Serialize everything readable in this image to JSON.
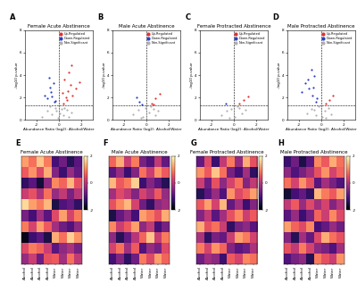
{
  "chart_data": [
    {
      "type": "scatter",
      "label": "A",
      "title": "Female Acute Abstinence",
      "x_label": "Abundance Ratio (log2): Alcohol/Water",
      "y_label": "-log10 p-value",
      "xlim": [
        -3,
        3
      ],
      "xticks": [
        -2,
        0,
        2
      ],
      "ylim": [
        0,
        8
      ],
      "yticks": [
        0,
        2,
        4,
        6,
        8
      ],
      "hline": 1.3,
      "vline": 0,
      "legend": "upper right",
      "marker": "o",
      "grid": false,
      "series": [
        {
          "name": "Up-Regulated",
          "color": "#e0312f",
          "x": [
            0.4,
            0.6,
            0.8,
            1.0,
            1.2,
            0.5,
            0.9,
            1.5,
            0.7,
            1.1,
            1.8,
            0.3
          ],
          "y": [
            1.5,
            2.0,
            2.6,
            3.1,
            2.2,
            3.6,
            4.2,
            2.8,
            1.8,
            4.9,
            3.4,
            2.4
          ]
        },
        {
          "name": "Down-Regulated",
          "color": "#2a3fbf",
          "x": [
            -0.4,
            -0.6,
            -0.8,
            -1.0,
            -0.5,
            -0.7,
            -1.3,
            -0.3,
            -0.9
          ],
          "y": [
            1.6,
            2.1,
            2.9,
            1.9,
            3.3,
            2.5,
            2.2,
            1.7,
            3.8
          ]
        },
        {
          "name": "Non-Significant",
          "color": "#b0b0b0",
          "x": [
            -1.5,
            -1.0,
            -0.6,
            -0.3,
            -0.1,
            0.1,
            0.2,
            0.4,
            0.7,
            1.1,
            -0.8,
            0.9,
            -0.2,
            0.5
          ],
          "y": [
            0.3,
            0.8,
            0.5,
            1.1,
            0.2,
            0.6,
            1.0,
            0.4,
            0.9,
            0.7,
            1.2,
            0.3,
            0.8,
            1.1
          ]
        }
      ]
    },
    {
      "type": "scatter",
      "label": "B",
      "title": "Male Acute Abstinence",
      "x_label": "Abundance Ratio (log2): Alcohol/Water",
      "y_label": "-log10 p-value",
      "xlim": [
        -3,
        3
      ],
      "xticks": [
        -2,
        0,
        2
      ],
      "ylim": [
        0,
        8
      ],
      "yticks": [
        0,
        2,
        4,
        6,
        8
      ],
      "hline": 1.3,
      "vline": 0,
      "legend": "upper right",
      "marker": "o",
      "grid": false,
      "series": [
        {
          "name": "Up-Regulated",
          "color": "#e0312f",
          "x": [
            0.5,
            0.8,
            1.2,
            0.6
          ],
          "y": [
            1.5,
            1.9,
            2.3,
            1.4
          ]
        },
        {
          "name": "Down-Regulated",
          "color": "#2a3fbf",
          "x": [
            -0.6,
            -0.9,
            -0.4
          ],
          "y": [
            1.6,
            2.0,
            1.4
          ]
        },
        {
          "name": "Non-Significant",
          "color": "#b0b0b0",
          "x": [
            -1.2,
            -0.7,
            -0.3,
            -0.1,
            0.2,
            0.4,
            0.8,
            1.0,
            -0.5,
            0.6
          ],
          "y": [
            0.5,
            0.9,
            0.3,
            1.1,
            0.7,
            1.2,
            0.4,
            0.8,
            0.2,
            1.0
          ]
        }
      ]
    },
    {
      "type": "scatter",
      "label": "C",
      "title": "Female Protracted Abstinence",
      "x_label": "Abundance Ratio (log2): Alcohol/Water",
      "y_label": "-log10 p-value",
      "xlim": [
        -3,
        3
      ],
      "xticks": [
        -2,
        0,
        2
      ],
      "ylim": [
        0,
        8
      ],
      "yticks": [
        0,
        2,
        4,
        6,
        8
      ],
      "hline": 1.3,
      "vline": 0,
      "legend": "upper right",
      "marker": "o",
      "grid": false,
      "series": [
        {
          "name": "Up-Regulated",
          "color": "#e0312f",
          "x": [
            0.5,
            0.9,
            1.3
          ],
          "y": [
            1.5,
            1.8,
            2.1
          ]
        },
        {
          "name": "Down-Regulated",
          "color": "#2a3fbf",
          "x": [
            -0.7
          ],
          "y": [
            1.5
          ]
        },
        {
          "name": "Non-Significant",
          "color": "#b0b0b0",
          "x": [
            -1.1,
            -0.6,
            -0.2,
            0.1,
            0.3,
            0.7,
            1.0,
            -0.4,
            0.5
          ],
          "y": [
            0.4,
            0.8,
            1.0,
            0.3,
            1.2,
            0.6,
            0.9,
            0.2,
            1.1
          ]
        }
      ]
    },
    {
      "type": "scatter",
      "label": "D",
      "title": "Male Protracted Abstinence",
      "x_label": "Abundance Ratio (log2): Alcohol/Water",
      "y_label": "-log10 p-value",
      "xlim": [
        -3,
        3
      ],
      "xticks": [
        -2,
        0,
        2
      ],
      "ylim": [
        0,
        8
      ],
      "yticks": [
        0,
        2,
        4,
        6,
        8
      ],
      "hline": 1.3,
      "vline": 0,
      "legend": "upper right",
      "marker": "o",
      "grid": false,
      "series": [
        {
          "name": "Up-Regulated",
          "color": "#e0312f",
          "x": [
            0.4,
            0.7,
            1.0
          ],
          "y": [
            1.5,
            1.8,
            2.2
          ]
        },
        {
          "name": "Down-Regulated",
          "color": "#2a3fbf",
          "x": [
            -0.5,
            -0.8,
            -1.1,
            -1.4,
            -0.6,
            -0.9,
            -1.7,
            -0.4,
            -1.2,
            -0.7
          ],
          "y": [
            1.6,
            2.2,
            2.8,
            3.3,
            3.9,
            4.5,
            2.5,
            1.9,
            3.6,
            2.9
          ]
        },
        {
          "name": "Non-Significant",
          "color": "#b0b0b0",
          "x": [
            -1.3,
            -0.9,
            -0.5,
            -0.2,
            0.1,
            0.3,
            0.6,
            0.9,
            -0.6,
            0.4
          ],
          "y": [
            0.6,
            1.0,
            0.4,
            1.2,
            0.3,
            0.8,
            1.1,
            0.5,
            0.9,
            0.2
          ]
        }
      ]
    },
    {
      "type": "heatmap",
      "label": "E",
      "title": "Female Acute Abstinence",
      "tick_labels": "x",
      "columns": [
        "Alcohol",
        "Alcohol",
        "Alcohol",
        "Alcohol",
        "Water",
        "Water",
        "Water",
        "Water"
      ],
      "colorbar_range": [
        -2,
        2
      ],
      "colorbar_ticks": [
        -2,
        0,
        2
      ],
      "cells": [
        [
          1.2,
          0.8,
          1.5,
          0.9,
          -1.1,
          -0.7,
          -1.4,
          -0.9
        ],
        [
          0.6,
          1.1,
          0.4,
          1.3,
          -0.5,
          -1.2,
          -0.3,
          -0.8
        ],
        [
          -1.3,
          -0.9,
          -1.6,
          -0.4,
          1.0,
          0.7,
          1.4,
          0.5
        ],
        [
          0.2,
          0.5,
          -0.1,
          0.8,
          -0.3,
          0.1,
          -0.6,
          0.0
        ],
        [
          1.7,
          1.2,
          0.9,
          1.4,
          -1.5,
          -1.0,
          -0.8,
          -1.3
        ],
        [
          -0.6,
          -1.1,
          -0.2,
          -0.9,
          0.4,
          1.2,
          0.3,
          0.9
        ],
        [
          0.9,
          0.3,
          1.2,
          0.6,
          -0.2,
          -0.7,
          -1.0,
          -0.4
        ],
        [
          -1.8,
          -1.2,
          -0.9,
          -1.5,
          1.3,
          0.8,
          1.6,
          1.1
        ],
        [
          0.4,
          0.9,
          0.7,
          0.2,
          -0.9,
          -0.4,
          -0.1,
          -0.6
        ],
        [
          -0.3,
          0.2,
          -0.7,
          0.5,
          0.6,
          -0.2,
          0.8,
          0.1
        ]
      ]
    },
    {
      "type": "heatmap",
      "label": "F",
      "title": "Male Acute Abstinence",
      "tick_labels": "x",
      "columns": [
        "Alcohol",
        "Alcohol",
        "Alcohol",
        "Alcohol",
        "Water",
        "Water",
        "Water",
        "Water"
      ],
      "colorbar_range": [
        -2,
        2
      ],
      "colorbar_ticks": [
        -2,
        0,
        2
      ],
      "cells": [
        [
          0.7,
          1.3,
          0.2,
          0.9,
          -0.6,
          -1.0,
          0.1,
          -0.8
        ],
        [
          -0.9,
          -0.3,
          -1.2,
          -0.5,
          0.8,
          0.2,
          1.1,
          0.6
        ],
        [
          1.4,
          0.6,
          0.9,
          1.6,
          -1.2,
          -0.5,
          -0.9,
          -1.4
        ],
        [
          -0.2,
          0.4,
          0.1,
          -0.5,
          0.3,
          -0.1,
          0.6,
          -0.3
        ],
        [
          0.5,
          1.0,
          1.4,
          0.3,
          -0.7,
          -1.3,
          -0.4,
          -0.2
        ],
        [
          -1.5,
          -0.8,
          -0.4,
          -1.1,
          1.2,
          0.9,
          0.5,
          1.3
        ],
        [
          1.0,
          0.2,
          0.6,
          1.2,
          -0.4,
          0.1,
          -1.1,
          -0.6
        ],
        [
          -0.4,
          -1.4,
          -0.8,
          0.0,
          0.7,
          1.5,
          0.2,
          0.9
        ],
        [
          0.3,
          0.8,
          -0.2,
          0.6,
          -1.0,
          -0.3,
          -0.6,
          0.4
        ],
        [
          -1.1,
          -0.5,
          -1.3,
          -0.7,
          0.9,
          0.4,
          1.2,
          0.7
        ]
      ]
    },
    {
      "type": "heatmap",
      "label": "G",
      "title": "Female Protracted Abstinence",
      "tick_labels": "x",
      "columns": [
        "Alcohol",
        "Alcohol",
        "Alcohol",
        "Alcohol",
        "Water",
        "Water",
        "Water",
        "Water"
      ],
      "colorbar_range": [
        -2,
        2
      ],
      "colorbar_ticks": [
        -2,
        0,
        2
      ],
      "cells": [
        [
          -0.8,
          0.4,
          -1.2,
          0.1,
          0.9,
          -0.3,
          1.3,
          0.5
        ],
        [
          1.1,
          0.6,
          1.5,
          0.8,
          -0.6,
          -1.1,
          -0.2,
          -1.3
        ],
        [
          0.2,
          -0.7,
          0.5,
          -0.4,
          0.3,
          0.8,
          -0.5,
          0.1
        ],
        [
          -1.4,
          -0.9,
          -0.3,
          -1.0,
          1.1,
          0.4,
          0.7,
          1.2
        ],
        [
          0.6,
          1.2,
          0.3,
          1.4,
          -0.8,
          -0.2,
          -1.2,
          -0.5
        ],
        [
          -0.5,
          0.1,
          -0.9,
          -0.2,
          0.5,
          1.0,
          0.2,
          0.6
        ],
        [
          1.3,
          0.5,
          0.8,
          0.2,
          -1.3,
          -0.6,
          -0.4,
          -0.9
        ],
        [
          -0.1,
          -1.3,
          -0.6,
          -0.8,
          0.2,
          1.2,
          0.9,
          0.3
        ],
        [
          0.9,
          0.3,
          1.1,
          0.7,
          -0.5,
          -0.9,
          -0.7,
          -0.1
        ],
        [
          -0.7,
          -0.2,
          -0.4,
          -1.2,
          0.6,
          0.3,
          1.0,
          0.8
        ]
      ]
    },
    {
      "type": "heatmap",
      "label": "H",
      "title": "Male Protracted Abstinence",
      "tick_labels": "x",
      "columns": [
        "Alcohol",
        "Alcohol",
        "Alcohol",
        "Alcohol",
        "Water",
        "Water",
        "Water",
        "Water"
      ],
      "colorbar_range": [
        -2,
        2
      ],
      "colorbar_ticks": [
        -2,
        0,
        2
      ],
      "cells": [
        [
          -1.2,
          -0.7,
          -1.5,
          -0.9,
          1.0,
          0.6,
          1.3,
          0.8
        ],
        [
          -0.4,
          -1.0,
          -0.6,
          -0.2,
          0.5,
          1.1,
          0.3,
          0.7
        ],
        [
          0.8,
          0.3,
          1.1,
          0.5,
          -0.9,
          -0.2,
          -0.6,
          -1.0
        ],
        [
          -1.6,
          -1.1,
          -0.8,
          -1.3,
          1.4,
          0.9,
          0.6,
          1.2
        ],
        [
          0.1,
          0.6,
          -0.3,
          0.4,
          -0.2,
          0.3,
          -0.5,
          0.0
        ],
        [
          -0.9,
          -0.3,
          -1.2,
          -0.6,
          0.7,
          0.2,
          1.0,
          0.4
        ],
        [
          1.2,
          0.7,
          0.4,
          1.0,
          -1.1,
          -0.8,
          -0.3,
          -0.7
        ],
        [
          -0.5,
          -1.4,
          -0.2,
          -0.8,
          0.4,
          1.3,
          0.8,
          0.5
        ],
        [
          0.5,
          0.1,
          0.9,
          0.3,
          -0.4,
          -0.6,
          -1.0,
          -0.2
        ],
        [
          -1.0,
          -0.6,
          -0.4,
          -1.4,
          0.9,
          0.5,
          0.2,
          1.1
        ]
      ]
    }
  ]
}
